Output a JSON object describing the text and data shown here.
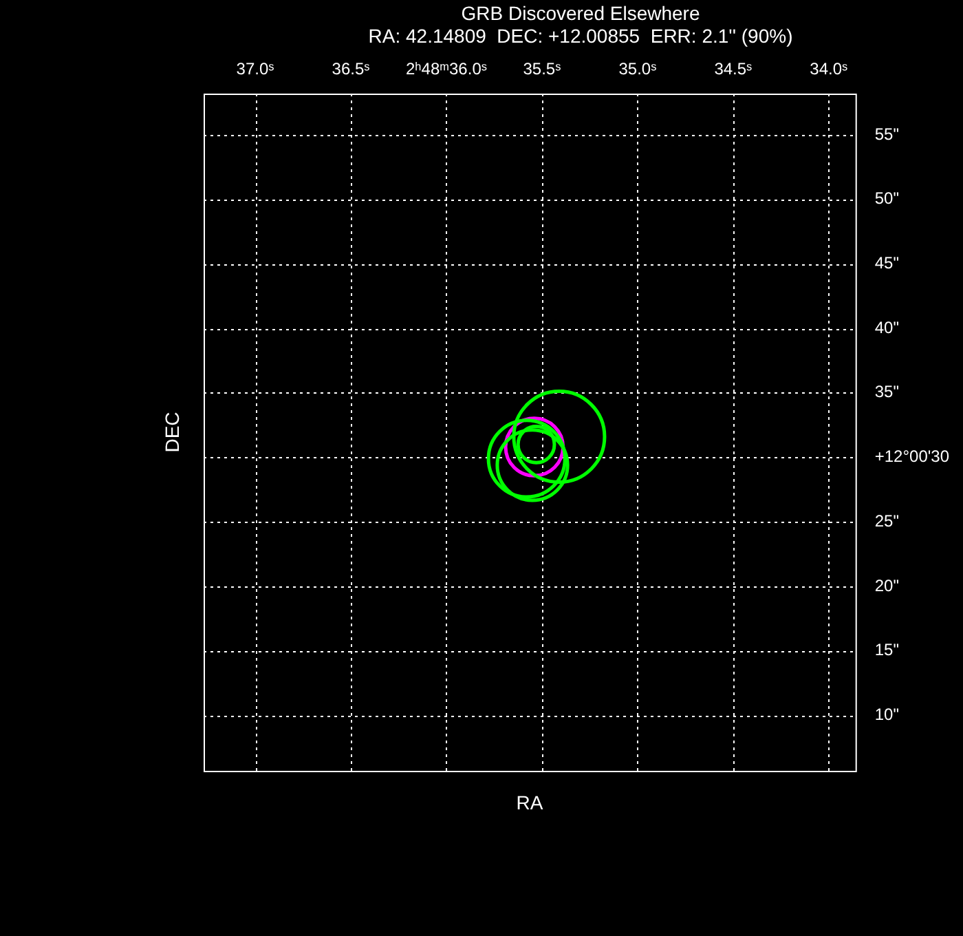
{
  "chart_data": {
    "type": "bubble",
    "title": "GRB Discovered Elsewhere",
    "subtitle": "RA: 42.14809  DEC: +12.00855  ERR: 2.1'' (90%)",
    "xlabel": "RA",
    "ylabel": "DEC",
    "xlim": [
      37.27,
      33.86
    ],
    "xticks": [
      {
        "value": 37.0,
        "label": "37.0ˢ"
      },
      {
        "value": 36.5,
        "label": "36.5ˢ"
      },
      {
        "value": 36.0,
        "label": "2ʰ48ᵐ36.0ˢ"
      },
      {
        "value": 35.5,
        "label": "35.5ˢ"
      },
      {
        "value": 35.0,
        "label": "35.0ˢ"
      },
      {
        "value": 34.5,
        "label": "34.5ˢ"
      },
      {
        "value": 34.0,
        "label": "34.0ˢ"
      }
    ],
    "ylim": [
      5.7,
      58.2
    ],
    "yticks": [
      {
        "value": 10,
        "label": "10\""
      },
      {
        "value": 15,
        "label": "15\""
      },
      {
        "value": 20,
        "label": "20\""
      },
      {
        "value": 25,
        "label": "25\""
      },
      {
        "value": 30,
        "label": "+12°00'30"
      },
      {
        "value": 35,
        "label": "35\""
      },
      {
        "value": 40,
        "label": "40\""
      },
      {
        "value": 45,
        "label": "45\""
      },
      {
        "value": 50,
        "label": "50\""
      },
      {
        "value": 55,
        "label": "55\""
      }
    ],
    "series": [
      {
        "color": "#00ff00",
        "x": [
          35.41,
          35.58,
          35.55,
          35.53
        ],
        "values": [
          31.6,
          29.9,
          29.4,
          31.0
        ],
        "sizes": [
          1,
          0.71,
          0.6,
          0.16
        ]
      },
      {
        "color": "#ff00ff",
        "x": [
          35.54
        ],
        "values": [
          30.8
        ],
        "sizes": [
          0.4
        ]
      }
    ],
    "grid": true,
    "legend": false
  }
}
